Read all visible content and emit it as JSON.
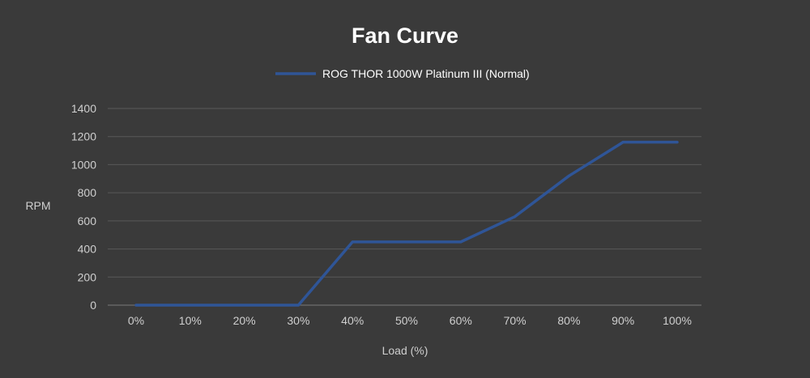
{
  "chart_data": {
    "type": "line",
    "title": "Fan Curve",
    "xlabel": "Load (%)",
    "ylabel": "RPM",
    "categories": [
      "0%",
      "10%",
      "20%",
      "30%",
      "40%",
      "50%",
      "60%",
      "70%",
      "80%",
      "90%",
      "100%"
    ],
    "series": [
      {
        "name": "ROG THOR 1000W Platinum III (Normal)",
        "color": "#2f5597",
        "values": [
          0,
          0,
          0,
          0,
          450,
          450,
          450,
          630,
          920,
          1160,
          1160
        ]
      }
    ],
    "ylim": [
      0,
      1400
    ],
    "yticks": [
      0,
      200,
      400,
      600,
      800,
      1000,
      1200,
      1400
    ],
    "grid": true,
    "legend_position": "top-center"
  },
  "colors": {
    "background": "#3a3a3a",
    "gridline": "#595959",
    "text": "#cfcfcf"
  }
}
